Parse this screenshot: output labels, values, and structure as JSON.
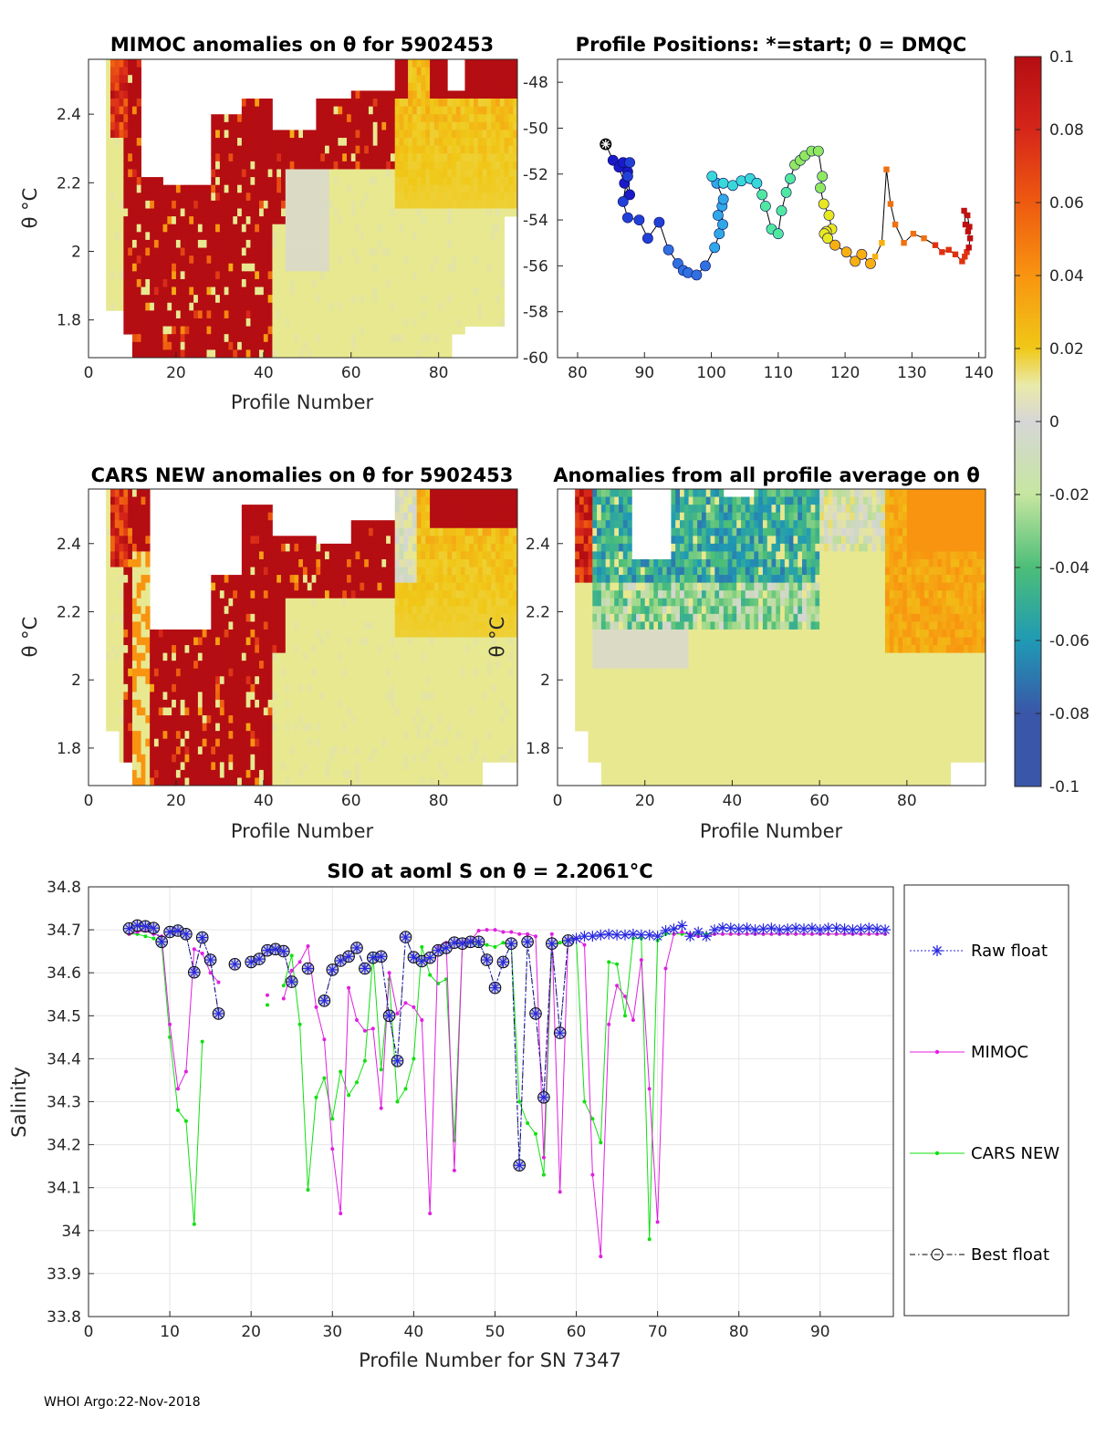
{
  "footer": "WHOI Argo:22-Nov-2018",
  "colorbar": {
    "ticks": [
      "0.1",
      "0.08",
      "0.06",
      "0.04",
      "0.02",
      "0",
      "-0.02",
      "-0.04",
      "-0.06",
      "-0.08",
      "-0.1"
    ],
    "colors": [
      "#b40d12",
      "#d6261a",
      "#ee5a10",
      "#f89410",
      "#f0c818",
      "#e8e890",
      "#d6d6d6",
      "#b8e090",
      "#4cbe78",
      "#1f9ab4",
      "#3a56a8"
    ]
  },
  "chart_data": [
    {
      "id": "mimoc",
      "type": "heatmap",
      "title": "MIMOC anomalies on θ  for 5902453",
      "xlabel": "Profile Number",
      "ylabel": "θ °C",
      "xlim": [
        0,
        98
      ],
      "ylim": [
        1.69,
        2.56
      ],
      "xticks": [
        "0",
        "20",
        "40",
        "60",
        "80"
      ],
      "yticks": [
        "1.8",
        "2",
        "2.2",
        "2.4"
      ]
    },
    {
      "id": "positions",
      "type": "scatter",
      "title": "Profile Positions: *=start; 0 = DMQC",
      "xlim": [
        77,
        141
      ],
      "ylim": [
        -60,
        -47
      ],
      "xticks": [
        "80",
        "90",
        "100",
        "110",
        "120",
        "130",
        "140"
      ],
      "yticks": [
        "-48",
        "-50",
        "-52",
        "-54",
        "-56",
        "-58",
        "-60"
      ],
      "lon": [
        84.2,
        85.3,
        86.2,
        87,
        87.8,
        87.5,
        86.8,
        87.5,
        87.8,
        86.8,
        87.5,
        89.2,
        90.5,
        92.2,
        93.6,
        95,
        95.8,
        96.5,
        97.8,
        99.1,
        100.5,
        101.2,
        101.7,
        101.6,
        101,
        101.8,
        100.8,
        100.1,
        101.8,
        103.2,
        104.5,
        105.8,
        106.8,
        107.6,
        108.1,
        109,
        110,
        110.5,
        111.2,
        111.8,
        112.5,
        113.3,
        114,
        115,
        116,
        116.6,
        116.3,
        116.8,
        117.6,
        118,
        117.2,
        116.9,
        117.4,
        118.5,
        120.2,
        121.5,
        122.5,
        123.8,
        124.5,
        125.5,
        126.2,
        126.8,
        127.5,
        128.8,
        130.2,
        131.8,
        133.5,
        134.5,
        135.5,
        136.5,
        137.5,
        137.9,
        138.2,
        138.5,
        138.7,
        138.4,
        138,
        137.8,
        138.3,
        138.6
      ],
      "lat": [
        -50.7,
        -51.4,
        -51.7,
        -52.4,
        -52.9,
        -51.9,
        -51.5,
        -52.1,
        -51.5,
        -53.2,
        -53.9,
        -54,
        -54.8,
        -54.1,
        -55.3,
        -55.9,
        -56.2,
        -56.3,
        -56.4,
        -56,
        -55.2,
        -54.6,
        -54.2,
        -53.4,
        -53.8,
        -53.1,
        -52.4,
        -52.1,
        -52.4,
        -52.5,
        -52.3,
        -52.2,
        -52.4,
        -52.9,
        -53.4,
        -54.4,
        -54.6,
        -53.6,
        -52.8,
        -52.2,
        -51.6,
        -51.4,
        -51.2,
        -51,
        -51,
        -52.1,
        -52.6,
        -53.3,
        -53.8,
        -54.4,
        -54.5,
        -54.6,
        -54.8,
        -55.1,
        -55.4,
        -55.8,
        -55.5,
        -55.9,
        -55.6,
        -55,
        -51.8,
        -53.3,
        -54.2,
        -55,
        -54.6,
        -54.8,
        -55.1,
        -55.4,
        -55.3,
        -55.5,
        -55.8,
        -55.6,
        -55.4,
        -55.2,
        -54.8,
        -54.5,
        -54.2,
        -53.6,
        -53.8,
        -54.3
      ]
    },
    {
      "id": "cars",
      "type": "heatmap",
      "title": "CARS NEW anomalies on θ for 5902453",
      "xlabel": "Profile Number",
      "ylabel": "θ °C",
      "xlim": [
        0,
        98
      ],
      "ylim": [
        1.69,
        2.56
      ],
      "xticks": [
        "0",
        "20",
        "40",
        "60",
        "80"
      ],
      "yticks": [
        "1.8",
        "2",
        "2.2",
        "2.4"
      ]
    },
    {
      "id": "avg",
      "type": "heatmap",
      "title": "Anomalies from all profile average on θ",
      "xlabel": "Profile Number",
      "ylabel": "θ °C",
      "xlim": [
        0,
        98
      ],
      "ylim": [
        1.69,
        2.56
      ],
      "xticks": [
        "0",
        "20",
        "40",
        "60",
        "80"
      ],
      "yticks": [
        "1.8",
        "2",
        "2.2",
        "2.4"
      ]
    },
    {
      "id": "salinity",
      "type": "line",
      "title": "SIO at aoml S on θ = 2.2061°C",
      "xlabel": "Profile Number for SN 7347",
      "ylabel": "Salinity",
      "xlim": [
        0,
        99
      ],
      "ylim": [
        33.8,
        34.8
      ],
      "xticks": [
        "0",
        "10",
        "20",
        "30",
        "40",
        "50",
        "60",
        "70",
        "80",
        "90"
      ],
      "yticks": [
        "33.8",
        "33.9",
        "34",
        "34.1",
        "34.2",
        "34.3",
        "34.4",
        "34.5",
        "34.6",
        "34.7",
        "34.8"
      ],
      "x": [
        5,
        6,
        7,
        8,
        9,
        10,
        11,
        12,
        13,
        14,
        15,
        16,
        17,
        18,
        19,
        20,
        21,
        22,
        23,
        24,
        25,
        26,
        27,
        28,
        29,
        30,
        31,
        32,
        33,
        34,
        35,
        36,
        37,
        38,
        39,
        40,
        41,
        42,
        43,
        44,
        45,
        46,
        47,
        48,
        49,
        50,
        51,
        52,
        53,
        54,
        55,
        56,
        57,
        58,
        59,
        60,
        61,
        62,
        63,
        64,
        65,
        66,
        67,
        68,
        69,
        70,
        71,
        72,
        73,
        74,
        75,
        76,
        77,
        78,
        79,
        80,
        81,
        82,
        83,
        84,
        85,
        86,
        87,
        88,
        89,
        90,
        91,
        92,
        93,
        94,
        95,
        96,
        97,
        98
      ],
      "series": [
        {
          "name": "Raw float",
          "values": [
            34.703,
            34.71,
            34.708,
            34.704,
            34.672,
            34.695,
            34.698,
            34.69,
            34.601,
            34.682,
            34.63,
            34.505,
            null,
            34.62,
            null,
            34.625,
            34.632,
            34.652,
            34.655,
            34.65,
            34.579,
            null,
            34.61,
            null,
            34.535,
            34.607,
            34.628,
            34.638,
            34.658,
            34.61,
            34.635,
            34.638,
            34.5,
            34.395,
            34.683,
            34.636,
            34.627,
            34.635,
            34.652,
            34.658,
            34.67,
            34.668,
            34.672,
            34.672,
            34.63,
            34.565,
            34.625,
            34.668,
            34.152,
            34.672,
            34.505,
            34.31,
            34.668,
            34.46,
            34.675,
            34.68,
            34.685,
            34.685,
            34.688,
            34.69,
            34.688,
            34.688,
            34.69,
            34.688,
            34.688,
            34.685,
            34.698,
            34.702,
            34.71,
            34.685,
            34.695,
            34.685,
            34.7,
            34.705,
            34.704,
            34.702,
            34.704,
            34.7,
            34.702,
            34.704,
            34.7,
            34.702,
            34.704,
            34.702,
            34.704,
            34.7,
            34.704,
            34.704,
            34.702,
            34.7,
            34.702,
            34.704,
            34.702,
            34.7
          ]
        },
        {
          "name": "MIMOC",
          "values": [
            34.69,
            34.695,
            34.698,
            34.69,
            34.685,
            34.48,
            34.33,
            34.37,
            34.655,
            34.645,
            34.6,
            34.578,
            null,
            null,
            null,
            null,
            null,
            34.548,
            null,
            34.54,
            34.605,
            34.625,
            34.662,
            34.52,
            34.445,
            34.19,
            34.04,
            34.565,
            34.49,
            34.465,
            34.47,
            34.285,
            34.6,
            34.505,
            34.53,
            34.52,
            34.49,
            34.04,
            34.66,
            34.67,
            34.14,
            34.672,
            34.675,
            34.698,
            34.7,
            34.7,
            34.695,
            34.695,
            34.69,
            34.69,
            34.685,
            34.17,
            34.69,
            34.09,
            34.678,
            34.68,
            34.665,
            34.13,
            33.94,
            34.48,
            34.57,
            34.545,
            34.49,
            34.63,
            34.33,
            34.02,
            34.61,
            34.69,
            34.695,
            34.69,
            34.685,
            34.685,
            34.69,
            34.69,
            34.69,
            34.69,
            34.69,
            34.69,
            34.69,
            34.69,
            34.69,
            34.69,
            34.69,
            34.69,
            34.69,
            34.69,
            34.69,
            34.69,
            34.69,
            34.69,
            34.69,
            34.69,
            34.69,
            34.69
          ]
        },
        {
          "name": "CARS NEW",
          "values": [
            34.69,
            34.69,
            34.685,
            34.68,
            34.665,
            34.45,
            34.28,
            34.255,
            34.015,
            34.44,
            null,
            null,
            null,
            null,
            null,
            null,
            null,
            34.525,
            null,
            34.57,
            34.64,
            34.48,
            34.095,
            34.31,
            34.355,
            34.26,
            34.37,
            34.315,
            34.345,
            34.395,
            34.64,
            34.375,
            34.585,
            34.3,
            34.33,
            34.4,
            34.66,
            34.595,
            34.575,
            34.585,
            34.21,
            34.67,
            34.67,
            34.665,
            34.665,
            34.66,
            34.67,
            34.665,
            34.3,
            34.25,
            34.225,
            34.13,
            34.665,
            34.67,
            34.675,
            34.68,
            34.3,
            34.26,
            34.205,
            34.625,
            34.62,
            34.5,
            34.68,
            34.68,
            33.98,
            34.675,
            34.69,
            34.69,
            34.69,
            34.69,
            34.69,
            34.69,
            34.69,
            34.69,
            34.69,
            34.69,
            34.69,
            34.69,
            34.69,
            34.69,
            34.69,
            34.69,
            34.69,
            34.69,
            34.69,
            34.69,
            34.69,
            34.69,
            34.69,
            34.69,
            34.69,
            34.69,
            34.69,
            34.69
          ]
        },
        {
          "name": "Best float",
          "values": [
            34.703,
            34.71,
            34.708,
            34.704,
            34.672,
            34.695,
            34.698,
            34.69,
            34.601,
            34.682,
            34.63,
            34.505,
            null,
            34.62,
            null,
            34.625,
            34.632,
            34.652,
            34.655,
            34.65,
            34.579,
            null,
            34.61,
            null,
            34.535,
            34.607,
            34.628,
            34.638,
            34.658,
            34.61,
            34.635,
            34.638,
            34.5,
            34.395,
            34.683,
            34.636,
            34.627,
            34.635,
            34.652,
            34.658,
            34.67,
            34.668,
            34.672,
            34.672,
            34.63,
            34.565,
            34.625,
            34.668,
            34.152,
            34.672,
            34.505,
            34.31,
            34.668,
            34.46,
            34.675,
            null,
            null,
            null,
            null,
            null,
            null,
            null,
            null,
            null,
            null,
            null,
            null,
            null,
            null,
            null,
            null,
            null,
            null,
            null,
            null,
            null,
            null,
            null,
            null,
            null,
            null,
            null,
            null,
            null,
            null,
            null,
            null,
            null,
            null,
            null,
            null,
            null,
            null,
            null
          ]
        }
      ],
      "legend": [
        {
          "label": "Raw float"
        },
        {
          "label": "MIMOC"
        },
        {
          "label": "CARS NEW"
        },
        {
          "label": "Best float"
        }
      ]
    }
  ]
}
